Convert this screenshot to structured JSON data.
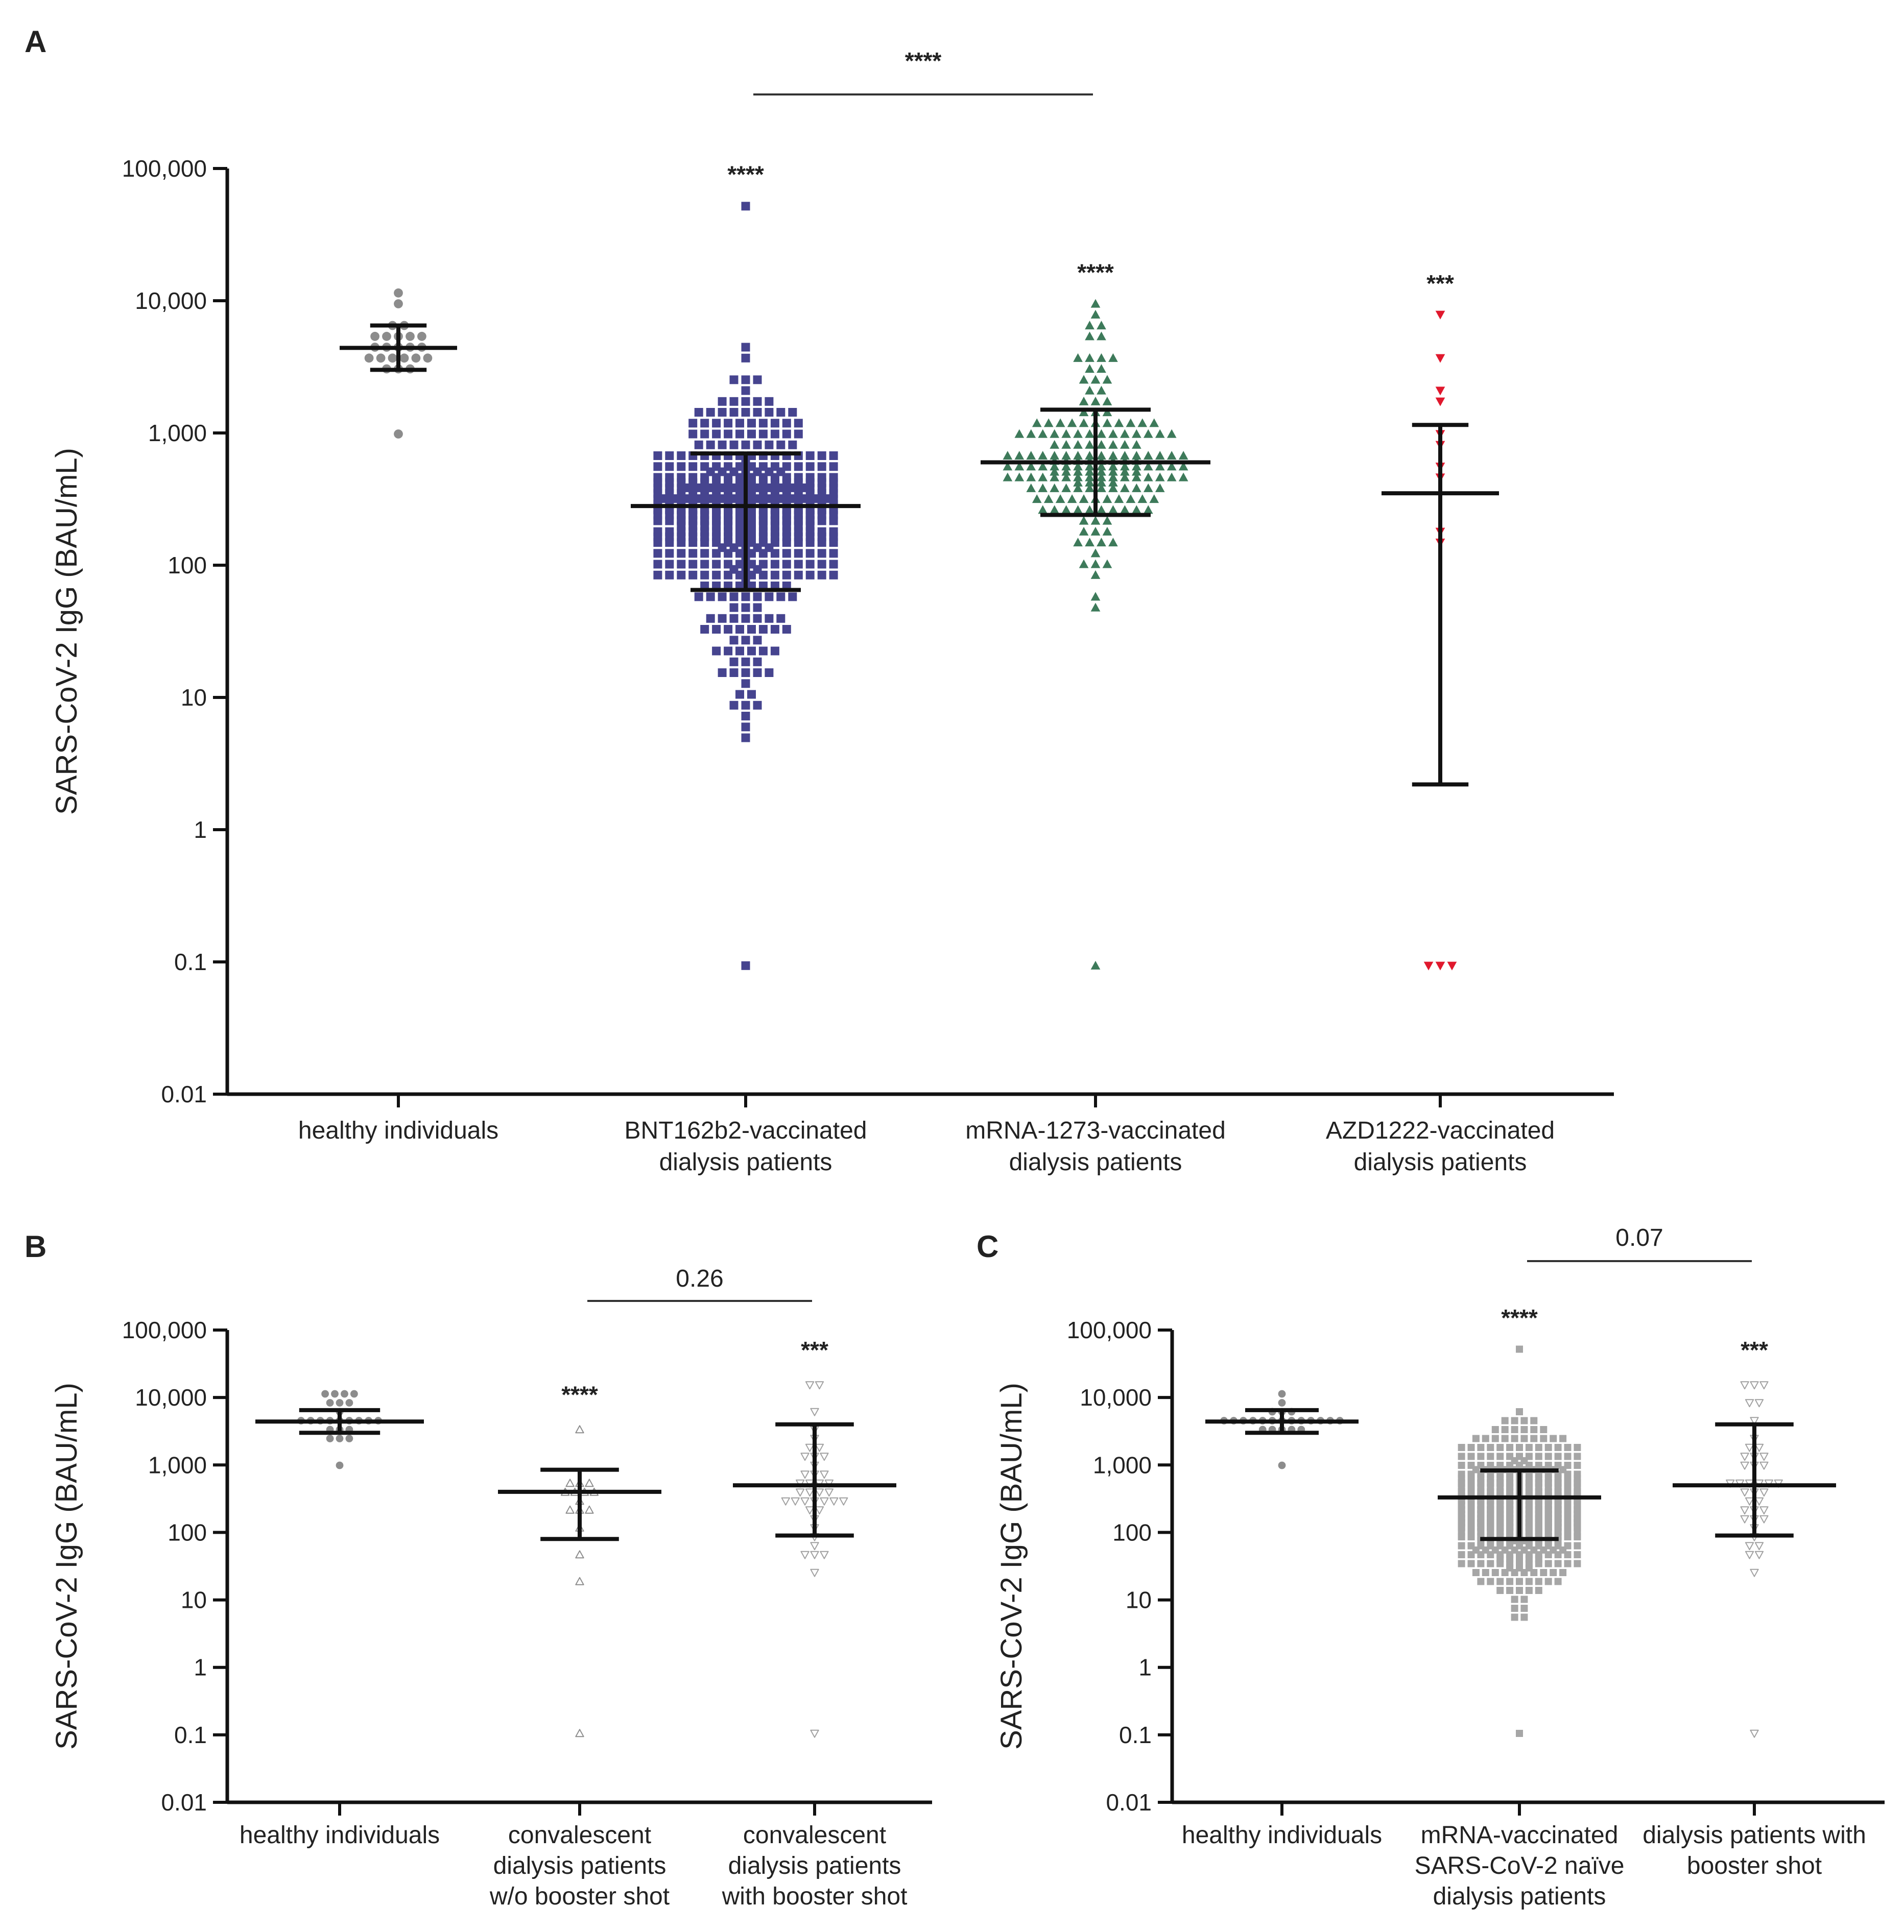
{
  "panels": [
    {
      "id": "A",
      "label": "A"
    },
    {
      "id": "B",
      "label": "B"
    },
    {
      "id": "C",
      "label": "C"
    }
  ],
  "chart_data": [
    {
      "id": "A",
      "type": "scatter",
      "yscale": "log",
      "ylabel": "SARS-CoV-2 IgG (BAU/mL)",
      "ylim": [
        0.01,
        100000
      ],
      "yticks": [
        0.01,
        0.1,
        1,
        10,
        100,
        1000,
        10000,
        100000
      ],
      "ytick_labels": [
        "0.01",
        "0.1",
        "1",
        "10",
        "100",
        "1,000",
        "10,000",
        "100,000"
      ],
      "categories": [
        "healthy individuals",
        "BNT162b2-vaccinated dialysis patients",
        "mRNA-1273-vaccinated dialysis patients",
        "AZD1222-vaccinated dialysis patients"
      ],
      "category_lines": [
        [
          "healthy individuals"
        ],
        [
          "BNT162b2-vaccinated",
          "dialysis patients"
        ],
        [
          "mRNA-1273-vaccinated",
          "dialysis patients"
        ],
        [
          "AZD1222-vaccinated",
          "dialysis patients"
        ]
      ],
      "series": [
        {
          "name": "healthy individuals",
          "marker": "circle",
          "color": "#8c8c8c",
          "filled": true,
          "n": 24,
          "median": 4400,
          "q1": 3000,
          "q3": 6500,
          "min": 900,
          "max": 11500,
          "significance": ""
        },
        {
          "name": "BNT162b2-vaccinated dialysis patients",
          "marker": "square",
          "color": "#46448f",
          "filled": true,
          "n": 480,
          "median": 280,
          "q1": 65,
          "q3": 700,
          "min": 0.1,
          "max": 48000,
          "significance": "****"
        },
        {
          "name": "mRNA-1273-vaccinated dialysis patients",
          "marker": "triangle-up",
          "color": "#3d7a5a",
          "filled": true,
          "n": 175,
          "median": 600,
          "q1": 240,
          "q3": 1500,
          "min": 0.1,
          "max": 8700,
          "significance": "****"
        },
        {
          "name": "AZD1222-vaccinated dialysis patients",
          "marker": "triangle-down",
          "color": "#e0182d",
          "filled": true,
          "n": 13,
          "median": 350,
          "q1": 2.2,
          "q3": 1150,
          "min": 0.1,
          "max": 7200,
          "significance": "***"
        }
      ],
      "comparisons": [
        {
          "from": 1,
          "to": 2,
          "label": "****"
        }
      ]
    },
    {
      "id": "B",
      "type": "scatter",
      "yscale": "log",
      "ylabel": "SARS-CoV-2 IgG (BAU/mL)",
      "ylim": [
        0.01,
        100000
      ],
      "yticks": [
        0.01,
        0.1,
        1,
        10,
        100,
        1000,
        10000,
        100000
      ],
      "ytick_labels": [
        "0.01",
        "0.1",
        "1",
        "10",
        "100",
        "1,000",
        "10,000",
        "100,000"
      ],
      "categories": [
        "healthy individuals",
        "convalescent dialysis patients w/o booster shot",
        "convalescent dialysis patients with booster shot"
      ],
      "category_lines": [
        [
          "healthy individuals"
        ],
        [
          "convalescent",
          "dialysis patients",
          "w/o booster shot"
        ],
        [
          "convalescent",
          "dialysis patients",
          "with booster shot"
        ]
      ],
      "series": [
        {
          "name": "healthy individuals",
          "marker": "circle",
          "color": "#8c8c8c",
          "filled": true,
          "n": 24,
          "median": 4400,
          "q1": 3000,
          "q3": 6500,
          "min": 900,
          "max": 11500,
          "significance": ""
        },
        {
          "name": "convalescent dialysis patients w/o booster shot",
          "marker": "triangle-up",
          "color": "#8c8c8c",
          "filled": false,
          "n": 16,
          "median": 400,
          "q1": 80,
          "q3": 850,
          "min": 0.1,
          "max": 3500,
          "significance": "****"
        },
        {
          "name": "convalescent dialysis patients with booster shot",
          "marker": "triangle-down",
          "color": "#a0a0a0",
          "filled": false,
          "n": 40,
          "median": 500,
          "q1": 90,
          "q3": 4000,
          "min": 0.1,
          "max": 16000,
          "significance": "***"
        }
      ],
      "comparisons": [
        {
          "from": 1,
          "to": 2,
          "label": "0.26"
        }
      ]
    },
    {
      "id": "C",
      "type": "scatter",
      "yscale": "log",
      "ylabel": "SARS-CoV-2 IgG (BAU/mL)",
      "ylim": [
        0.01,
        100000
      ],
      "yticks": [
        0.01,
        0.1,
        1,
        10,
        100,
        1000,
        10000,
        100000
      ],
      "ytick_labels": [
        "0.01",
        "0.1",
        "1",
        "10",
        "100",
        "1,000",
        "10,000",
        "100,000"
      ],
      "categories": [
        "healthy individuals",
        "mRNA-vaccinated SARS-CoV-2 naïve dialysis patients",
        "dialysis patients with booster shot"
      ],
      "category_lines": [
        [
          "healthy individuals"
        ],
        [
          "mRNA-vaccinated",
          "SARS-CoV-2 naïve",
          "dialysis patients"
        ],
        [
          "dialysis patients with",
          "booster shot"
        ]
      ],
      "series": [
        {
          "name": "healthy individuals",
          "marker": "circle",
          "color": "#8c8c8c",
          "filled": true,
          "n": 24,
          "median": 4400,
          "q1": 3000,
          "q3": 6500,
          "min": 900,
          "max": 11500,
          "significance": ""
        },
        {
          "name": "mRNA-vaccinated SARS-CoV-2 naïve dialysis patients",
          "marker": "square",
          "color": "#a6a6a6",
          "filled": true,
          "n": 650,
          "median": 330,
          "q1": 80,
          "q3": 830,
          "min": 0.1,
          "max": 48000,
          "significance": "****"
        },
        {
          "name": "dialysis patients with booster shot",
          "marker": "triangle-down",
          "color": "#a0a0a0",
          "filled": false,
          "n": 40,
          "median": 500,
          "q1": 90,
          "q3": 4000,
          "min": 0.1,
          "max": 16000,
          "significance": "***"
        }
      ],
      "comparisons": [
        {
          "from": 1,
          "to": 2,
          "label": "0.07"
        }
      ]
    }
  ]
}
